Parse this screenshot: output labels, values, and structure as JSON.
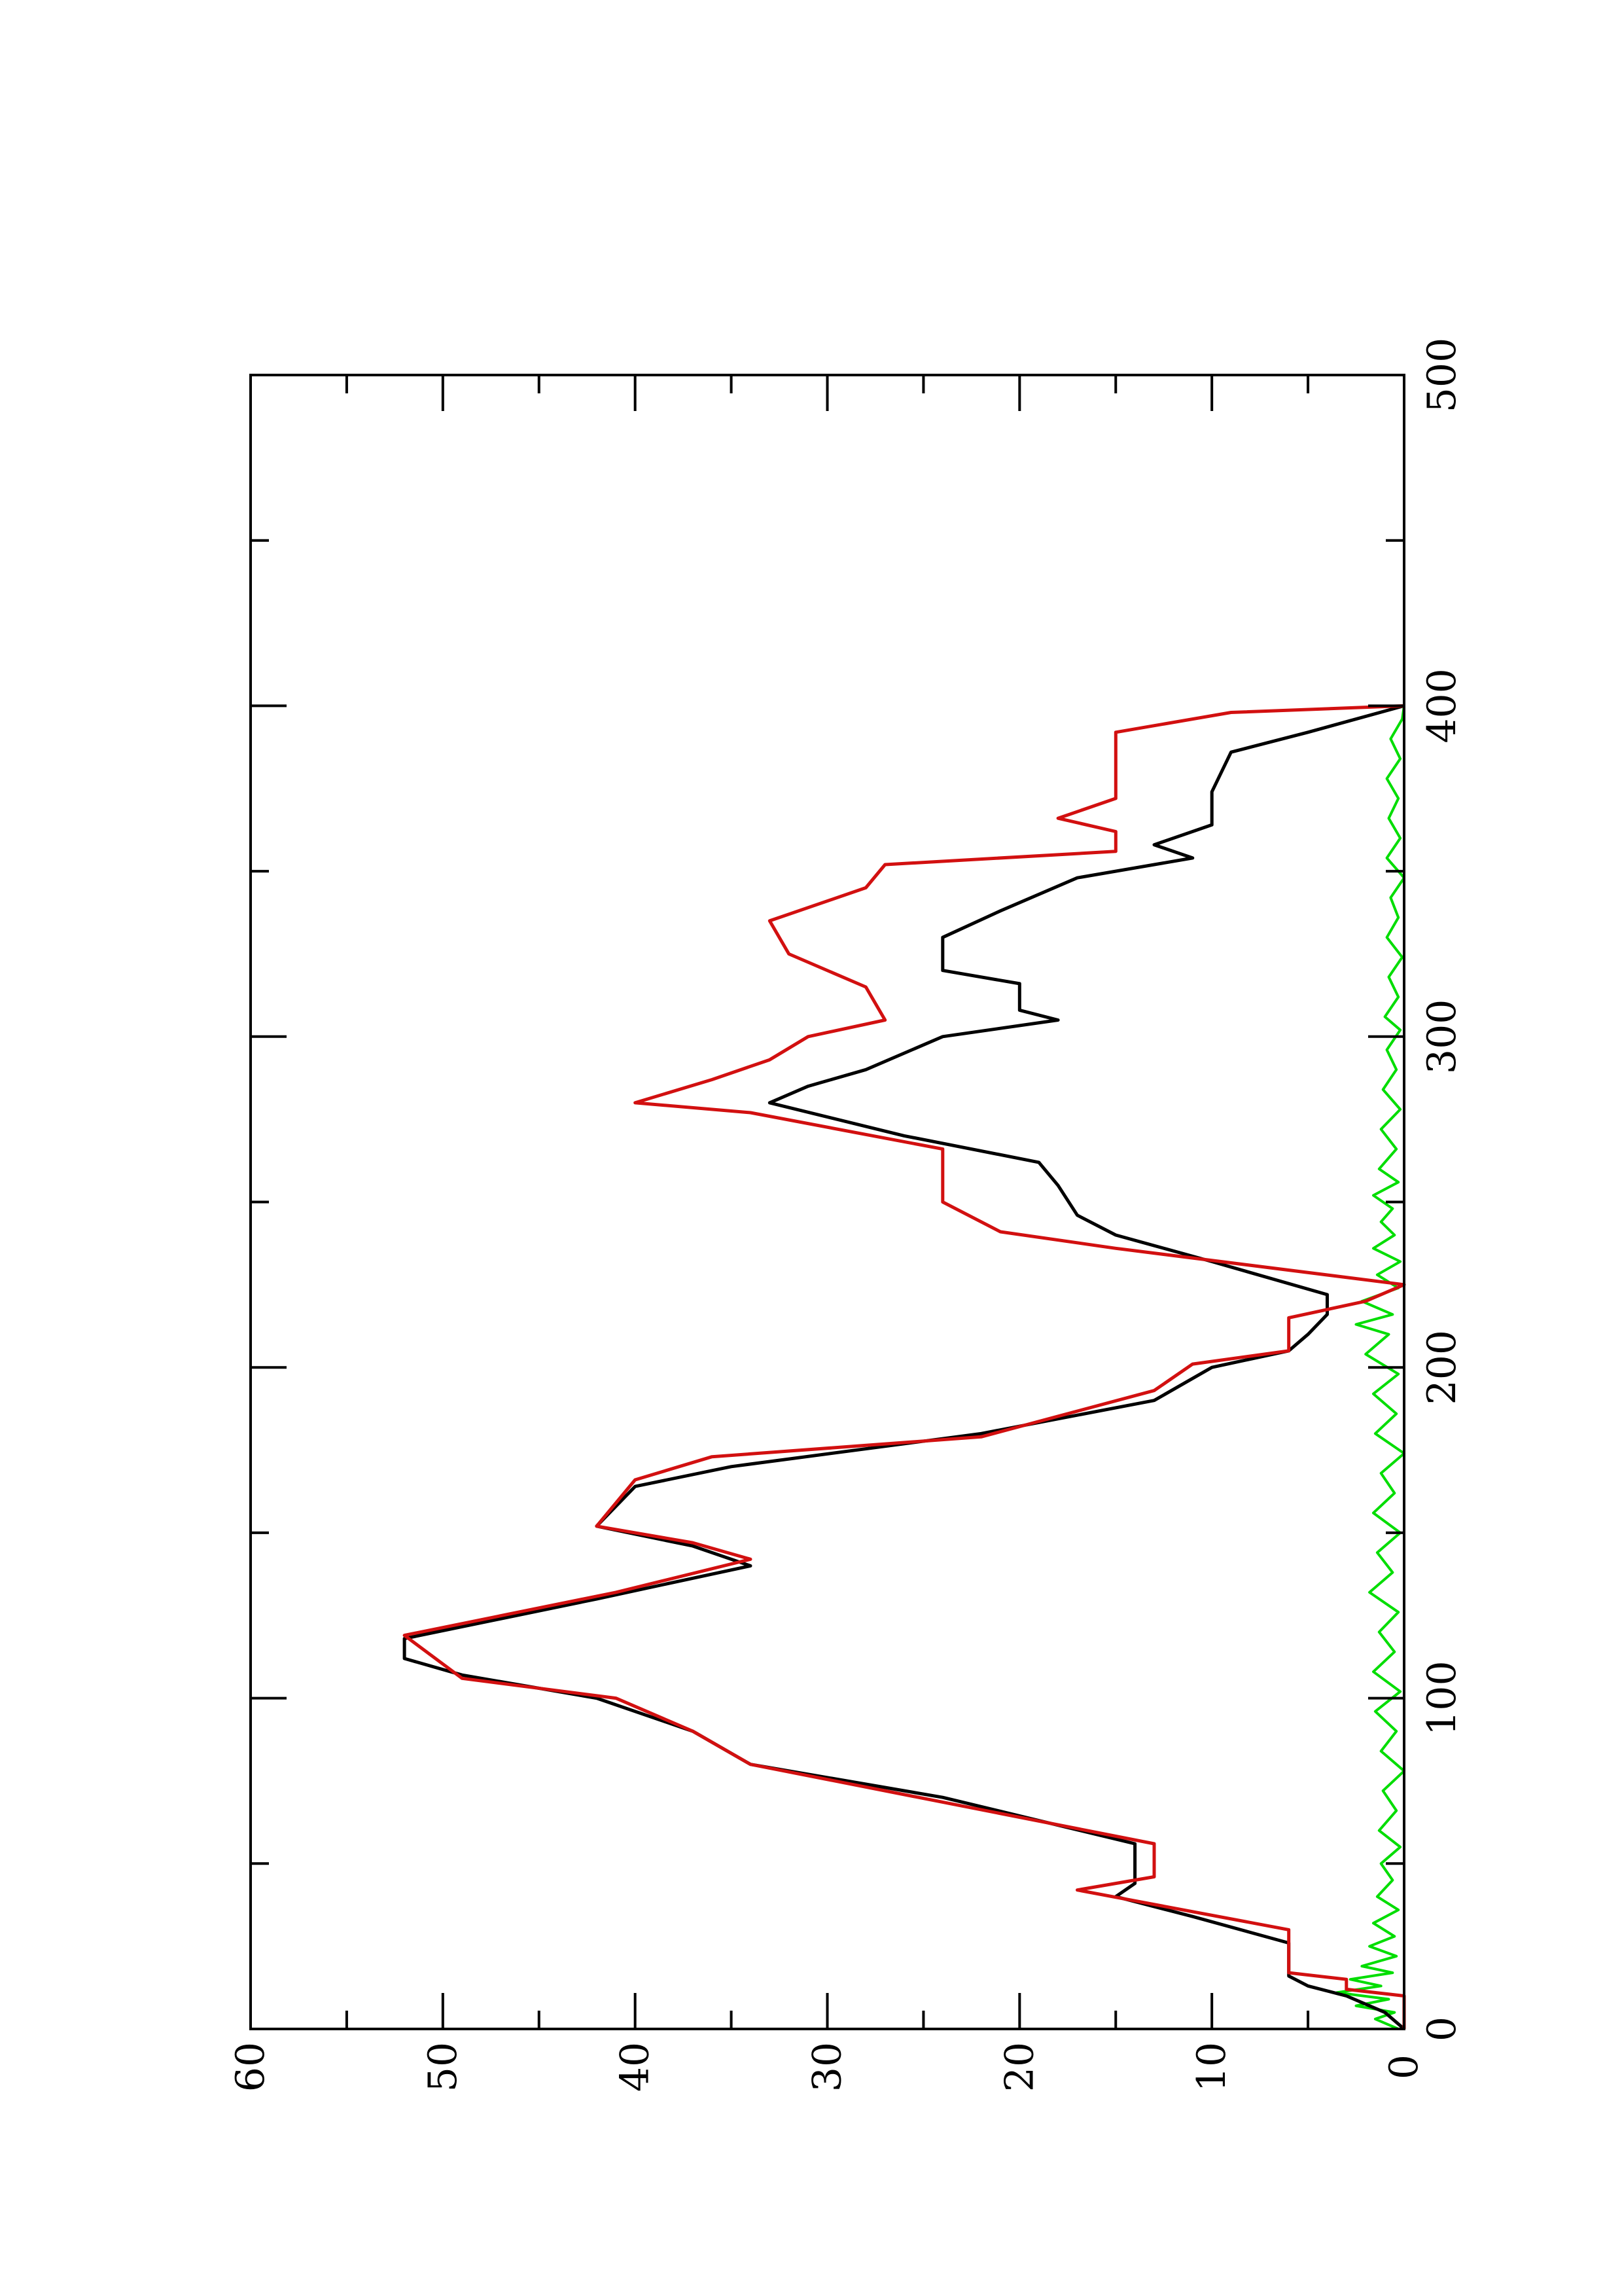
{
  "chart_data": {
    "type": "line",
    "title": "",
    "xlabel": "",
    "ylabel": "",
    "orientation": "rotated-90-counterclockwise",
    "xlim": [
      0,
      500
    ],
    "ylim": [
      0,
      60
    ],
    "x_ticks": [
      0,
      100,
      200,
      300,
      400,
      500
    ],
    "x_minor_ticks": [
      50,
      150,
      250,
      350,
      450
    ],
    "y_ticks": [
      0,
      10,
      20,
      30,
      40,
      50,
      60
    ],
    "y_minor_ticks": [
      5,
      15,
      25,
      35,
      45,
      55
    ],
    "grid": false,
    "legend": "none",
    "colors": {
      "red": "#d21010",
      "black": "#000000",
      "green": "#00dd00"
    },
    "series": [
      {
        "color": "red",
        "points": [
          [
            0,
            0
          ],
          [
            10,
            0
          ],
          [
            12,
            3
          ],
          [
            15,
            3
          ],
          [
            17,
            6
          ],
          [
            30,
            6
          ],
          [
            42,
            17
          ],
          [
            46,
            13
          ],
          [
            56,
            13
          ],
          [
            80,
            34
          ],
          [
            90,
            37
          ],
          [
            100,
            41
          ],
          [
            106,
            49
          ],
          [
            119,
            52
          ],
          [
            132,
            41
          ],
          [
            142,
            34
          ],
          [
            147,
            37
          ],
          [
            152,
            42
          ],
          [
            166,
            40
          ],
          [
            173,
            36
          ],
          [
            179,
            22
          ],
          [
            193,
            13
          ],
          [
            201,
            11
          ],
          [
            205,
            6
          ],
          [
            215,
            6
          ],
          [
            220,
            2
          ],
          [
            225,
            0
          ],
          [
            236,
            15
          ],
          [
            241,
            21
          ],
          [
            250,
            24
          ],
          [
            266,
            24
          ],
          [
            277,
            34
          ],
          [
            280,
            40
          ],
          [
            287,
            36
          ],
          [
            293,
            33
          ],
          [
            300,
            31
          ],
          [
            305,
            27
          ],
          [
            315,
            28
          ],
          [
            325,
            32
          ],
          [
            335,
            33
          ],
          [
            345,
            28
          ],
          [
            352,
            27
          ],
          [
            356,
            15
          ],
          [
            362,
            15
          ],
          [
            366,
            18
          ],
          [
            372,
            15
          ],
          [
            392,
            15
          ],
          [
            398,
            9
          ],
          [
            400,
            0
          ]
        ]
      },
      {
        "color": "black",
        "points": [
          [
            0,
            0
          ],
          [
            5,
            1
          ],
          [
            10,
            3
          ],
          [
            13,
            5
          ],
          [
            16,
            6
          ],
          [
            26,
            6
          ],
          [
            34,
            11
          ],
          [
            40,
            15
          ],
          [
            44,
            14
          ],
          [
            56,
            14
          ],
          [
            70,
            24
          ],
          [
            80,
            34
          ],
          [
            90,
            37
          ],
          [
            100,
            42
          ],
          [
            107,
            49
          ],
          [
            112,
            52
          ],
          [
            118,
            52
          ],
          [
            130,
            42
          ],
          [
            140,
            34
          ],
          [
            146,
            37
          ],
          [
            152,
            42
          ],
          [
            164,
            40
          ],
          [
            170,
            35
          ],
          [
            180,
            22
          ],
          [
            190,
            13
          ],
          [
            200,
            10
          ],
          [
            205,
            6
          ],
          [
            210,
            5
          ],
          [
            216,
            4
          ],
          [
            222,
            4
          ],
          [
            232,
            10
          ],
          [
            240,
            15
          ],
          [
            246,
            17
          ],
          [
            255,
            18
          ],
          [
            262,
            19
          ],
          [
            270,
            26
          ],
          [
            280,
            33
          ],
          [
            285,
            31
          ],
          [
            290,
            28
          ],
          [
            300,
            24
          ],
          [
            305,
            18
          ],
          [
            308,
            20
          ],
          [
            316,
            20
          ],
          [
            320,
            24
          ],
          [
            330,
            24
          ],
          [
            338,
            21
          ],
          [
            348,
            17
          ],
          [
            354,
            11
          ],
          [
            358,
            13
          ],
          [
            364,
            10
          ],
          [
            374,
            10
          ],
          [
            386,
            9
          ],
          [
            392,
            5
          ],
          [
            400,
            0
          ]
        ]
      },
      {
        "color": "green",
        "points": [
          [
            0,
            0.3
          ],
          [
            3,
            1.5
          ],
          [
            5,
            0.5
          ],
          [
            7,
            2.5
          ],
          [
            9,
            0.8
          ],
          [
            11,
            3.5
          ],
          [
            13,
            1.2
          ],
          [
            15,
            2.8
          ],
          [
            17,
            0.6
          ],
          [
            19,
            2.2
          ],
          [
            22,
            0.4
          ],
          [
            25,
            1.8
          ],
          [
            28,
            0.5
          ],
          [
            32,
            1.6
          ],
          [
            36,
            0.3
          ],
          [
            40,
            1.4
          ],
          [
            45,
            0.6
          ],
          [
            50,
            1.2
          ],
          [
            55,
            0.2
          ],
          [
            60,
            1.3
          ],
          [
            66,
            0.4
          ],
          [
            72,
            1.1
          ],
          [
            78,
            0
          ],
          [
            84,
            1.2
          ],
          [
            90,
            0.4
          ],
          [
            96,
            1.5
          ],
          [
            102,
            0.2
          ],
          [
            108,
            1.6
          ],
          [
            114,
            0.5
          ],
          [
            120,
            1.3
          ],
          [
            126,
            0.3
          ],
          [
            132,
            1.8
          ],
          [
            138,
            0.6
          ],
          [
            144,
            1.4
          ],
          [
            150,
            0.2
          ],
          [
            156,
            1.6
          ],
          [
            162,
            0.5
          ],
          [
            168,
            1.2
          ],
          [
            174,
            0
          ],
          [
            180,
            1.5
          ],
          [
            186,
            0.4
          ],
          [
            192,
            1.6
          ],
          [
            198,
            0.3
          ],
          [
            204,
            2.0
          ],
          [
            210,
            0.8
          ],
          [
            213,
            2.5
          ],
          [
            216,
            0.6
          ],
          [
            220,
            2.2
          ],
          [
            224,
            0.3
          ],
          [
            228,
            1.4
          ],
          [
            232,
            0.2
          ],
          [
            236,
            1.6
          ],
          [
            240,
            0.5
          ],
          [
            244,
            1.2
          ],
          [
            248,
            0.6
          ],
          [
            252,
            1.6
          ],
          [
            256,
            0.3
          ],
          [
            260,
            1.3
          ],
          [
            266,
            0.4
          ],
          [
            272,
            1.2
          ],
          [
            278,
            0.2
          ],
          [
            284,
            1.1
          ],
          [
            290,
            0.4
          ],
          [
            296,
            0.9
          ],
          [
            302,
            0.2
          ],
          [
            306,
            1.0
          ],
          [
            312,
            0.3
          ],
          [
            318,
            0.8
          ],
          [
            324,
            0.1
          ],
          [
            330,
            0.9
          ],
          [
            336,
            0.3
          ],
          [
            342,
            0.7
          ],
          [
            348,
            0
          ],
          [
            354,
            0.9
          ],
          [
            360,
            0.2
          ],
          [
            366,
            0.8
          ],
          [
            372,
            0.3
          ],
          [
            378,
            0.9
          ],
          [
            384,
            0.2
          ],
          [
            390,
            0.7
          ],
          [
            396,
            0.1
          ],
          [
            400,
            0
          ]
        ]
      }
    ]
  }
}
